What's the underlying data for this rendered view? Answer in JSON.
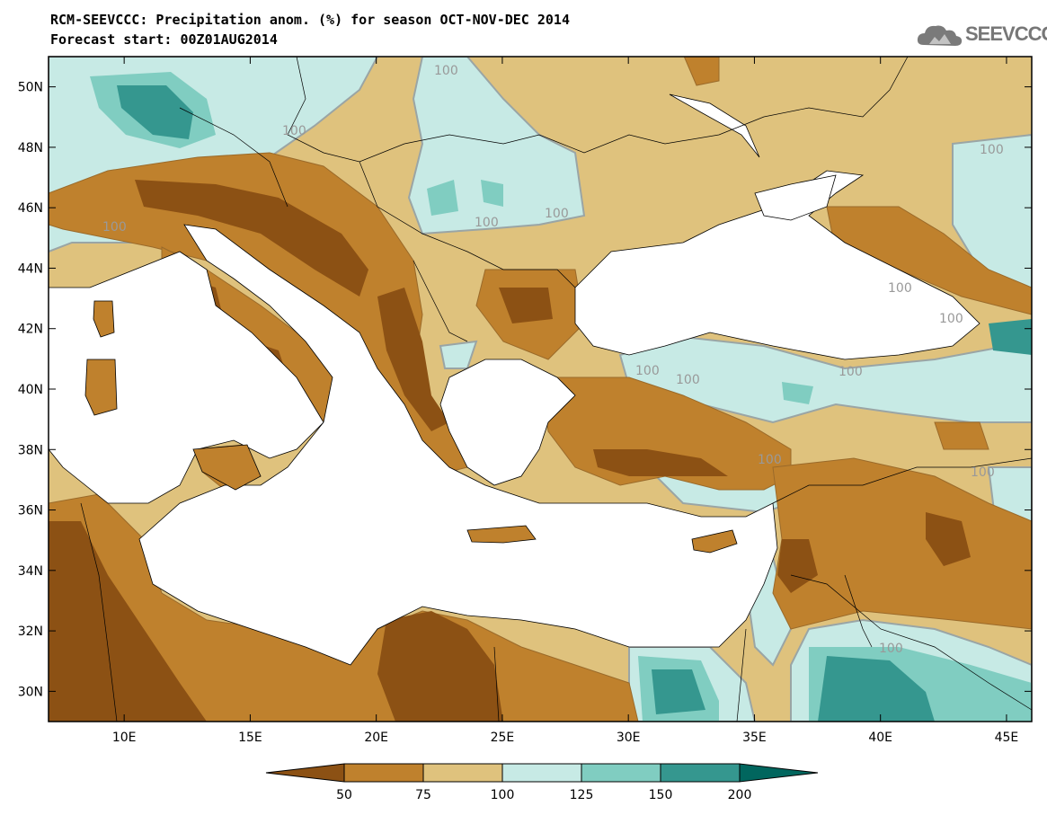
{
  "header": {
    "title": "RCM-SEEVCCC: Precipitation anom. (%) for season OCT-NOV-DEC 2014",
    "subtitle": "Forecast start: 00Z01AUG2014",
    "logo_text": "SEEVCCC"
  },
  "map": {
    "lon_range": [
      7,
      46
    ],
    "lat_range": [
      29,
      51
    ],
    "lat_ticks": [
      "50N",
      "48N",
      "46N",
      "44N",
      "42N",
      "40N",
      "38N",
      "36N",
      "34N",
      "32N",
      "30N"
    ],
    "lon_ticks": [
      "10E",
      "15E",
      "20E",
      "25E",
      "30E",
      "35E",
      "40E",
      "45E"
    ],
    "contour_labels": [
      "100",
      "100",
      "100",
      "100",
      "100",
      "100",
      "100",
      "100",
      "100",
      "100",
      "100",
      "100",
      "100",
      "100"
    ]
  },
  "colorbar": {
    "labels": [
      "50",
      "75",
      "100",
      "125",
      "150",
      "200"
    ],
    "colors": [
      "#8c5114",
      "#bf812d",
      "#dfc27d",
      "#c7eae5",
      "#80cdc1",
      "#35978f",
      "#01665e"
    ]
  },
  "colors": {
    "dry_strong": "#8c5114",
    "dry": "#bf812d",
    "dry_light": "#dfc27d",
    "wet_light": "#c7eae5",
    "wet": "#80cdc1",
    "wet_strong": "#35978f",
    "sea": "#ffffff"
  }
}
